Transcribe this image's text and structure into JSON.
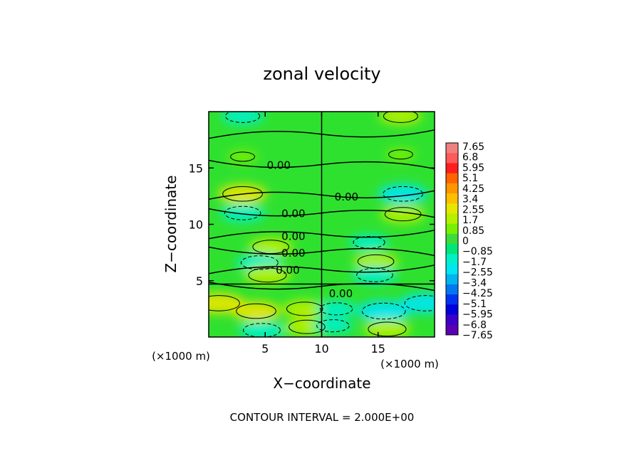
{
  "chart_data": {
    "type": "heatmap",
    "title": "zonal velocity",
    "xlabel": "X−coordinate",
    "ylabel": "Z−coordinate",
    "x_unit_left": "(×1000 m)",
    "x_unit_right": "(×1000 m)",
    "xlim": [
      0,
      20
    ],
    "ylim": [
      0,
      20
    ],
    "x_ticks": [
      {
        "value": 5,
        "label": "5"
      },
      {
        "value": 10,
        "label": "10"
      },
      {
        "value": 15,
        "label": "15"
      }
    ],
    "y_ticks": [
      {
        "value": 5,
        "label": "5"
      },
      {
        "value": 10,
        "label": "10"
      },
      {
        "value": 15,
        "label": "15"
      }
    ],
    "footer": "CONTOUR INTERVAL = 2.000E+00",
    "colorbar": {
      "levels": [
        "7.65",
        "6.8",
        "5.95",
        "5.1",
        "4.25",
        "3.4",
        "2.55",
        "1.7",
        "0.85",
        "0",
        "−0.85",
        "−1.7",
        "−2.55",
        "−3.4",
        "−4.25",
        "−5.1",
        "−5.95",
        "−6.8",
        "−7.65"
      ],
      "colors": [
        "#f08080",
        "#ff5a5a",
        "#ff1e1e",
        "#ff6400",
        "#ff9600",
        "#ffbe00",
        "#e6e600",
        "#b4f000",
        "#78f000",
        "#3cdc3c",
        "#00e678",
        "#00f0c8",
        "#00e6f0",
        "#00b4f0",
        "#0078f0",
        "#0032f0",
        "#0000dc",
        "#3c00c8",
        "#5a00b4"
      ]
    },
    "contour_labels": [
      {
        "text": "0.00",
        "x": 6.2,
        "z": 15.3
      },
      {
        "text": "0.00",
        "x": 12.2,
        "z": 12.5
      },
      {
        "text": "0.00",
        "x": 7.5,
        "z": 11.0
      },
      {
        "text": "0.00",
        "x": 7.5,
        "z": 9.0
      },
      {
        "text": "0.00",
        "x": 7.5,
        "z": 7.5
      },
      {
        "text": "0.00",
        "x": 7.0,
        "z": 6.0
      },
      {
        "text": "0.00",
        "x": 11.7,
        "z": 3.9
      }
    ],
    "anomalies": [
      {
        "x": 3.0,
        "z": 19.6,
        "v": -2.0
      },
      {
        "x": 17.0,
        "z": 19.6,
        "v": 2.0
      },
      {
        "x": 3.0,
        "z": 16.0,
        "v": 0.9
      },
      {
        "x": 17.0,
        "z": 16.2,
        "v": 0.9
      },
      {
        "x": 3.0,
        "z": 12.7,
        "v": 2.6
      },
      {
        "x": 17.2,
        "z": 12.7,
        "v": -2.6
      },
      {
        "x": 3.0,
        "z": 11.0,
        "v": -2.2
      },
      {
        "x": 17.2,
        "z": 10.9,
        "v": 2.2
      },
      {
        "x": 14.2,
        "z": 8.4,
        "v": -1.7
      },
      {
        "x": 5.5,
        "z": 8.0,
        "v": 2.2
      },
      {
        "x": 4.5,
        "z": 6.6,
        "v": -2.3
      },
      {
        "x": 14.8,
        "z": 6.7,
        "v": 2.2
      },
      {
        "x": 5.2,
        "z": 5.5,
        "v": 2.4
      },
      {
        "x": 14.7,
        "z": 5.5,
        "v": -2.2
      },
      {
        "x": 0.9,
        "z": 3.0,
        "v": 2.8
      },
      {
        "x": 4.2,
        "z": 2.3,
        "v": 2.6
      },
      {
        "x": 8.5,
        "z": 2.5,
        "v": 2.2
      },
      {
        "x": 11.3,
        "z": 2.5,
        "v": -1.8
      },
      {
        "x": 15.5,
        "z": 2.3,
        "v": -3.0
      },
      {
        "x": 19.2,
        "z": 3.0,
        "v": -2.8
      },
      {
        "x": 4.7,
        "z": 0.6,
        "v": -2.3
      },
      {
        "x": 8.7,
        "z": 0.9,
        "v": 2.2
      },
      {
        "x": 11.0,
        "z": 1.0,
        "v": -1.8
      },
      {
        "x": 15.8,
        "z": 0.7,
        "v": 2.4
      }
    ]
  }
}
